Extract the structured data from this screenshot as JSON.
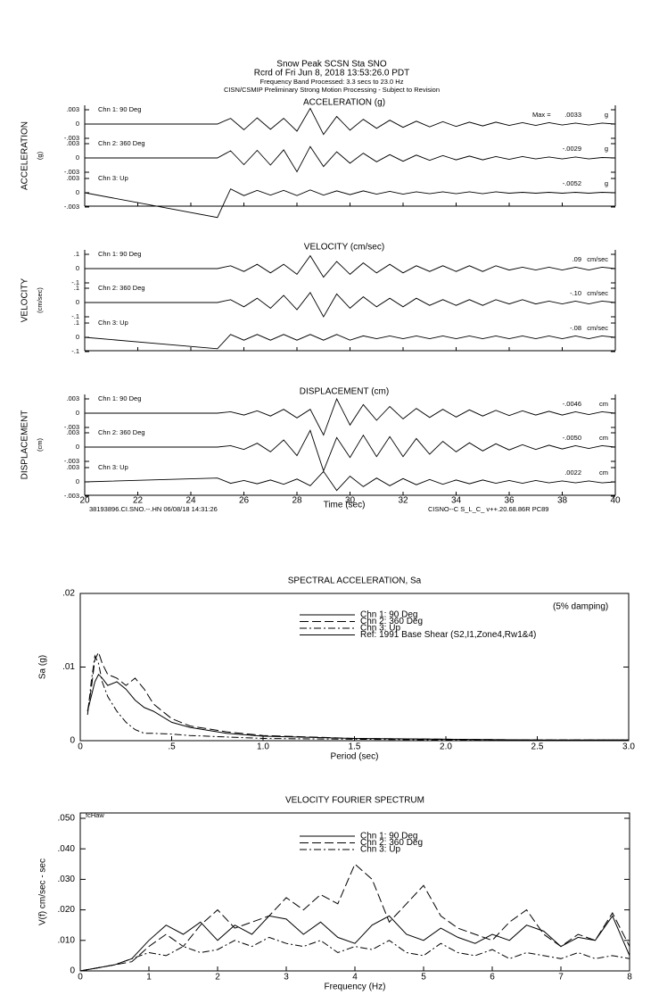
{
  "header": {
    "station": "Snow Peak    SCSN Sta SNO",
    "record": "Rcrd of Fri Jun  8, 2018 13:53:26.0 PDT",
    "band": "Frequency Band Processed: 3.3 secs to 23.0 Hz",
    "processing": "CISN/CSMIP Preliminary Strong Motion Processing - Subject to Revision"
  },
  "time_histories": {
    "type": "line",
    "xlabel": "Time (sec)",
    "xlim": [
      20,
      40
    ],
    "xticks": [
      20,
      22,
      24,
      26,
      28,
      30,
      32,
      34,
      36,
      38,
      40
    ],
    "footer_left": "38193896.CI.SNO.--.HN 06/08/18 14:31:26",
    "footer_right": "CISNO--C  S_L_C_  v++.20.68.86R PC89",
    "time": [
      20,
      25,
      25.5,
      26,
      26.5,
      27,
      27.5,
      28,
      28.5,
      29,
      29.5,
      30,
      30.5,
      31,
      31.5,
      32,
      32.5,
      33,
      33.5,
      34,
      34.5,
      35,
      35.5,
      36,
      36.5,
      37,
      37.5,
      38,
      38.5,
      39,
      39.5,
      40
    ],
    "panels": [
      {
        "title": "ACCELERATION (g)",
        "side_label": "ACCELERATION",
        "side_unit": "(g)",
        "ylim": [
          -0.003,
          0.003
        ],
        "yticks": [
          {
            "value": 0.003,
            "label": ".003"
          },
          0,
          {
            "value": -0.003,
            "label": "-.003"
          }
        ],
        "channels": [
          {
            "name": "Chn 1: 90 Deg",
            "peak_prefix": "Max =",
            "peak": ".0033",
            "unit": "g",
            "values": [
              0,
              0,
              0.0012,
              -0.0012,
              0.0013,
              -0.0011,
              0.0012,
              -0.0015,
              0.0033,
              -0.0022,
              0.0016,
              -0.0013,
              0.001,
              -0.0009,
              0.0008,
              -0.0007,
              0.0006,
              -0.0006,
              0.0005,
              -0.0005,
              0.0004,
              -0.0004,
              0.0004,
              -0.0003,
              0.0003,
              -0.0003,
              0.0003,
              -0.0002,
              0.0002,
              -0.0002,
              0.0002,
              0
            ]
          },
          {
            "name": "Chn 2: 360 Deg",
            "peak": "-.0029",
            "unit": "g",
            "values": [
              0,
              0,
              0.0015,
              -0.0014,
              0.0016,
              -0.0015,
              0.0017,
              -0.0029,
              0.0024,
              -0.0018,
              0.0013,
              -0.0011,
              0.001,
              -0.0008,
              0.0007,
              -0.0007,
              0.0006,
              -0.0005,
              0.0005,
              -0.0004,
              0.0004,
              -0.0004,
              0.0003,
              -0.0003,
              0.0003,
              -0.0002,
              0.0002,
              -0.0002,
              0.0002,
              -0.0002,
              0.0001,
              0
            ]
          },
          {
            "name": "Chn 3: Up",
            "peak": "-.0052",
            "unit": "g",
            "values": [
              0,
              -0.0052,
              0.0008,
              -0.0006,
              0.0005,
              -0.0005,
              0.0005,
              -0.0006,
              0.0006,
              -0.0005,
              0.0004,
              -0.0004,
              0.0004,
              -0.0003,
              0.0003,
              -0.0003,
              0.0002,
              -0.0002,
              0.0002,
              -0.0002,
              0.0002,
              -0.0002,
              0.0002,
              -0.0001,
              0.0001,
              -0.0001,
              0.0001,
              -0.0001,
              0.0001,
              -0.0001,
              0.0001,
              0
            ]
          }
        ]
      },
      {
        "title": "VELOCITY (cm/sec)",
        "side_label": "VELOCITY",
        "side_unit": "(cm/sec)",
        "ylim": [
          -0.1,
          0.1
        ],
        "yticks": [
          {
            "value": 0.1,
            "label": ".1"
          },
          0,
          {
            "value": -0.1,
            "label": "-.1"
          }
        ],
        "channels": [
          {
            "name": "Chn 1: 90 Deg",
            "peak": ".09",
            "unit": "cm/sec",
            "values": [
              0,
              0,
              0.02,
              -0.02,
              0.03,
              -0.03,
              0.03,
              -0.04,
              0.09,
              -0.06,
              0.05,
              -0.04,
              0.04,
              -0.03,
              0.03,
              -0.03,
              0.02,
              -0.02,
              0.02,
              -0.02,
              0.02,
              -0.02,
              0.02,
              -0.01,
              0.01,
              -0.01,
              0.01,
              -0.01,
              0.01,
              -0.01,
              0.01,
              0
            ]
          },
          {
            "name": "Chn 2: 360 Deg",
            "peak": "-.10",
            "unit": "cm/sec",
            "values": [
              0,
              0,
              0.02,
              -0.03,
              0.03,
              -0.04,
              0.05,
              -0.05,
              0.07,
              -0.1,
              0.06,
              -0.04,
              0.04,
              -0.03,
              0.03,
              -0.03,
              0.03,
              -0.02,
              0.02,
              -0.02,
              0.02,
              -0.02,
              0.02,
              -0.01,
              0.02,
              -0.01,
              0.01,
              -0.01,
              0.01,
              -0.01,
              0.01,
              0
            ]
          },
          {
            "name": "Chn 3: Up",
            "peak": "-.08",
            "unit": "cm/sec",
            "values": [
              0,
              -0.08,
              0.02,
              -0.02,
              0.02,
              -0.02,
              0.02,
              -0.02,
              0.02,
              -0.02,
              0.02,
              -0.02,
              0.01,
              -0.01,
              0.01,
              -0.01,
              0.01,
              -0.01,
              0.01,
              -0.01,
              0.01,
              -0.01,
              0.01,
              -0.01,
              0.01,
              -0.01,
              0.01,
              -0.01,
              0.01,
              -0.01,
              0.01,
              0
            ]
          }
        ]
      },
      {
        "title": "DISPLACEMENT (cm)",
        "side_label": "DISPLACEMENT",
        "side_unit": "(cm)",
        "ylim": [
          -0.003,
          0.003
        ],
        "yticks": [
          {
            "value": 0.003,
            "label": ".003"
          },
          0,
          {
            "value": -0.003,
            "label": "-.003"
          }
        ],
        "channels": [
          {
            "name": "Chn 1: 90 Deg",
            "peak": "-.0046",
            "unit": "cm",
            "values": [
              0,
              0,
              0.0003,
              -0.0004,
              0.0005,
              -0.0006,
              0.0008,
              -0.001,
              0.0008,
              -0.0046,
              0.003,
              -0.0025,
              0.0018,
              -0.0015,
              0.0014,
              -0.0012,
              0.001,
              -0.0009,
              0.0008,
              -0.0008,
              0.0007,
              -0.0006,
              0.0006,
              -0.0005,
              0.0005,
              -0.0004,
              0.0004,
              -0.0004,
              0.0003,
              -0.0003,
              0.0003,
              0
            ]
          },
          {
            "name": "Chn 2: 360 Deg",
            "peak": "-.0050",
            "unit": "cm",
            "values": [
              0,
              0,
              0.0003,
              -0.0005,
              0.0008,
              -0.001,
              0.0015,
              -0.0018,
              0.0035,
              -0.005,
              0.002,
              -0.0022,
              0.0025,
              -0.002,
              0.0022,
              -0.002,
              0.0018,
              -0.0015,
              0.0012,
              -0.001,
              0.0009,
              -0.0008,
              0.0007,
              -0.0006,
              0.0005,
              -0.0005,
              0.0004,
              -0.0004,
              0.0003,
              -0.0003,
              0.0003,
              0
            ]
          },
          {
            "name": "Chn 3: Up",
            "peak": ".0022",
            "unit": "cm",
            "values": [
              0,
              0.0008,
              -0.0003,
              0.0003,
              -0.0004,
              0.0004,
              -0.0005,
              0.0006,
              -0.0008,
              0.0022,
              -0.0018,
              0.0012,
              -0.001,
              0.0008,
              -0.0008,
              0.0007,
              -0.0006,
              0.0005,
              -0.0005,
              0.0004,
              -0.0004,
              0.0004,
              -0.0003,
              0.0003,
              -0.0003,
              0.0003,
              -0.0002,
              0.0002,
              -0.0002,
              0.0002,
              -0.0002,
              0
            ]
          }
        ]
      }
    ]
  },
  "spectral_acceleration": {
    "type": "line",
    "title": "SPECTRAL ACCELERATION, Sa",
    "xlabel": "Period (sec)",
    "ylabel": "Sa (g)",
    "note": "(5% damping)",
    "reference": "Ref: 1991 Base Shear (S2,I1,Zone4,Rw1&4)",
    "xlim": [
      0,
      3
    ],
    "xticks": [
      0,
      {
        "value": 0.5,
        "label": ".5"
      },
      {
        "value": 1,
        "label": "1.0"
      },
      1.5,
      {
        "value": 2,
        "label": "2.0"
      },
      2.5,
      {
        "value": 3,
        "label": "3.0"
      }
    ],
    "ylim": [
      0,
      0.02
    ],
    "yticks": [
      0,
      {
        "value": 0.01,
        "label": ".01"
      },
      {
        "value": 0.02,
        "label": ".02"
      }
    ],
    "x": [
      0.04,
      0.06,
      0.08,
      0.1,
      0.12,
      0.15,
      0.2,
      0.25,
      0.3,
      0.35,
      0.4,
      0.5,
      0.6,
      0.8,
      1,
      1.5,
      2,
      2.5,
      3
    ],
    "series": [
      {
        "name": "Chn 1: 90 Deg",
        "dash": "none",
        "values": [
          0.004,
          0.006,
          0.008,
          0.009,
          0.0085,
          0.0075,
          0.008,
          0.007,
          0.0055,
          0.0045,
          0.004,
          0.0025,
          0.0018,
          0.001,
          0.0006,
          0.0003,
          0.0002,
          0.0001,
          0.0001
        ]
      },
      {
        "name": "Chn 2: 360 Deg",
        "dash": "10,4",
        "values": [
          0.004,
          0.007,
          0.011,
          0.012,
          0.0105,
          0.009,
          0.0085,
          0.0075,
          0.0085,
          0.007,
          0.005,
          0.003,
          0.002,
          0.0012,
          0.0007,
          0.0003,
          0.0002,
          0.0001,
          0.0001
        ]
      },
      {
        "name": "Chn 3: Up",
        "dash": "8,3,2,3",
        "values": [
          0.0035,
          0.008,
          0.0115,
          0.0105,
          0.008,
          0.006,
          0.004,
          0.0025,
          0.0015,
          0.001,
          0.001,
          0.0009,
          0.0007,
          0.0005,
          0.0003,
          0.0002,
          0.0001,
          0.0001,
          0.0001
        ]
      }
    ]
  },
  "fourier": {
    "type": "line",
    "title": "VELOCITY FOURIER SPECTRUM",
    "xlabel": "Frequency (Hz)",
    "ylabel": "V(f)  cm/sec - sec",
    "tag": "fcHaw",
    "xlim": [
      0,
      8
    ],
    "xticks": [
      0,
      1,
      2,
      3,
      4,
      5,
      6,
      7,
      8
    ],
    "ylim": [
      0,
      0.05
    ],
    "yticks": [
      0,
      {
        "value": 0.01,
        "label": ".010"
      },
      {
        "value": 0.02,
        "label": ".020"
      },
      {
        "value": 0.03,
        "label": ".030"
      },
      {
        "value": 0.04,
        "label": ".040"
      },
      {
        "value": 0.05,
        "label": ".050"
      }
    ],
    "x": [
      0,
      0.25,
      0.5,
      0.75,
      1,
      1.25,
      1.5,
      1.75,
      2,
      2.25,
      2.5,
      2.75,
      3,
      3.25,
      3.5,
      3.75,
      4,
      4.25,
      4.5,
      4.75,
      5,
      5.25,
      5.5,
      5.75,
      6,
      6.25,
      6.5,
      6.75,
      7,
      7.25,
      7.5,
      7.75,
      8
    ],
    "series": [
      {
        "name": "Chn 1: 90 Deg",
        "dash": "none",
        "values": [
          0,
          0.001,
          0.002,
          0.004,
          0.01,
          0.015,
          0.012,
          0.016,
          0.01,
          0.015,
          0.012,
          0.018,
          0.017,
          0.012,
          0.016,
          0.011,
          0.009,
          0.015,
          0.018,
          0.012,
          0.01,
          0.014,
          0.011,
          0.009,
          0.012,
          0.01,
          0.015,
          0.013,
          0.008,
          0.011,
          0.01,
          0.018,
          0.005
        ]
      },
      {
        "name": "Chn 2: 360 Deg",
        "dash": "10,4",
        "values": [
          0,
          0.001,
          0.002,
          0.003,
          0.008,
          0.012,
          0.008,
          0.015,
          0.02,
          0.014,
          0.016,
          0.018,
          0.024,
          0.02,
          0.025,
          0.022,
          0.035,
          0.03,
          0.016,
          0.022,
          0.028,
          0.018,
          0.014,
          0.012,
          0.01,
          0.016,
          0.02,
          0.012,
          0.008,
          0.012,
          0.01,
          0.019,
          0.008
        ]
      },
      {
        "name": "Chn 3: Up",
        "dash": "8,3,2,3",
        "values": [
          0,
          0.001,
          0.002,
          0.004,
          0.006,
          0.005,
          0.008,
          0.006,
          0.007,
          0.01,
          0.008,
          0.011,
          0.009,
          0.008,
          0.01,
          0.006,
          0.008,
          0.007,
          0.01,
          0.006,
          0.005,
          0.009,
          0.006,
          0.005,
          0.007,
          0.004,
          0.006,
          0.005,
          0.004,
          0.006,
          0.004,
          0.005,
          0.004
        ]
      }
    ]
  }
}
